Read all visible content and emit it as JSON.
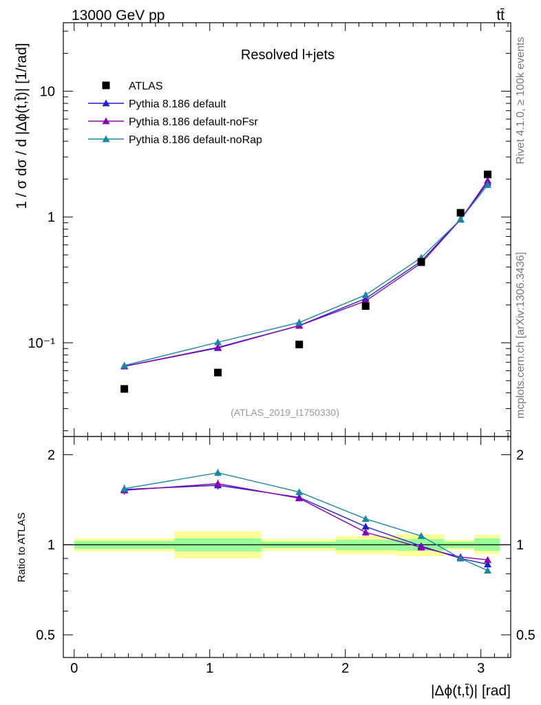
{
  "header": {
    "energy_label": "13000 GeV pp",
    "process_label": "tt̄"
  },
  "side_labels": {
    "rivet": "Rivet 4.1.0, ≥ 100k events",
    "mcplots": "mcplots.cern.ch [arXiv:1306.3436]"
  },
  "chart_data": {
    "type": "scatter",
    "title": "Resolved l+jets",
    "analysis_id": "(ATLAS_2019_I1750330)",
    "xlabel": "|Δϕ(t,t̄)| [rad]",
    "ylabel": "1 / σ dσ / d |Δϕ(t,t̄)| [1/rad]",
    "ratio_ylabel": "Ratio to ATLAS",
    "xlim": [
      -0.08,
      3.22
    ],
    "ylim": [
      0.018,
      35
    ],
    "yscale": "log",
    "ratio_ylim": [
      0.42,
      2.3
    ],
    "x_ticks": [
      "0",
      "1",
      "2",
      "3"
    ],
    "y_tick_labels": [
      "10⁻¹",
      "1",
      "10"
    ],
    "ratio_tick_labels": [
      "0.5",
      "1",
      "2"
    ],
    "legend_position": "top-left",
    "data": {
      "name": "ATLAS",
      "x": [
        0.37,
        1.06,
        1.66,
        2.15,
        2.56,
        2.85,
        3.05
      ],
      "y": [
        0.043,
        0.058,
        0.097,
        0.196,
        0.44,
        1.08,
        2.18
      ],
      "color": "#000000",
      "bins": [
        [
          0.0,
          0.74
        ],
        [
          0.74,
          1.38
        ],
        [
          1.38,
          1.93
        ],
        [
          1.93,
          2.37
        ],
        [
          2.37,
          2.73
        ],
        [
          2.73,
          2.95
        ],
        [
          2.95,
          3.14
        ]
      ],
      "band_total": [
        [
          0.95,
          1.05
        ],
        [
          0.9,
          1.11
        ],
        [
          0.955,
          1.045
        ],
        [
          0.93,
          1.07
        ],
        [
          0.915,
          1.085
        ],
        [
          0.96,
          1.04
        ],
        [
          0.93,
          1.08
        ]
      ],
      "band_stat": [
        [
          0.97,
          1.03
        ],
        [
          0.95,
          1.05
        ],
        [
          0.975,
          1.025
        ],
        [
          0.96,
          1.04
        ],
        [
          0.955,
          1.045
        ],
        [
          0.975,
          1.025
        ],
        [
          0.955,
          1.05
        ]
      ]
    },
    "series": [
      {
        "name": "Pythia 8.186 default",
        "color": "#1f1fd0",
        "values": [
          0.065,
          0.091,
          0.137,
          0.225,
          0.445,
          0.96,
          1.88
        ],
        "ratio": [
          1.53,
          1.58,
          1.44,
          1.15,
          0.99,
          0.9,
          0.86
        ],
        "ratio_err": [
          0.05,
          0.05,
          0.03,
          0.03,
          0.02,
          0.01,
          0.01
        ]
      },
      {
        "name": "Pythia 8.186 default-noFsr",
        "color": "#8a00b8",
        "values": [
          0.065,
          0.092,
          0.137,
          0.215,
          0.43,
          0.955,
          1.95
        ],
        "ratio": [
          1.52,
          1.6,
          1.43,
          1.1,
          0.98,
          0.91,
          0.89
        ],
        "ratio_err": [
          0.05,
          0.05,
          0.03,
          0.03,
          0.02,
          0.01,
          0.01
        ]
      },
      {
        "name": "Pythia 8.186 default-noRap",
        "color": "#1a86a8",
        "values": [
          0.066,
          0.101,
          0.145,
          0.24,
          0.475,
          0.955,
          1.8
        ],
        "ratio": [
          1.54,
          1.74,
          1.5,
          1.22,
          1.07,
          0.9,
          0.82
        ],
        "ratio_err": [
          0.05,
          0.05,
          0.03,
          0.03,
          0.02,
          0.01,
          0.01
        ]
      }
    ]
  }
}
